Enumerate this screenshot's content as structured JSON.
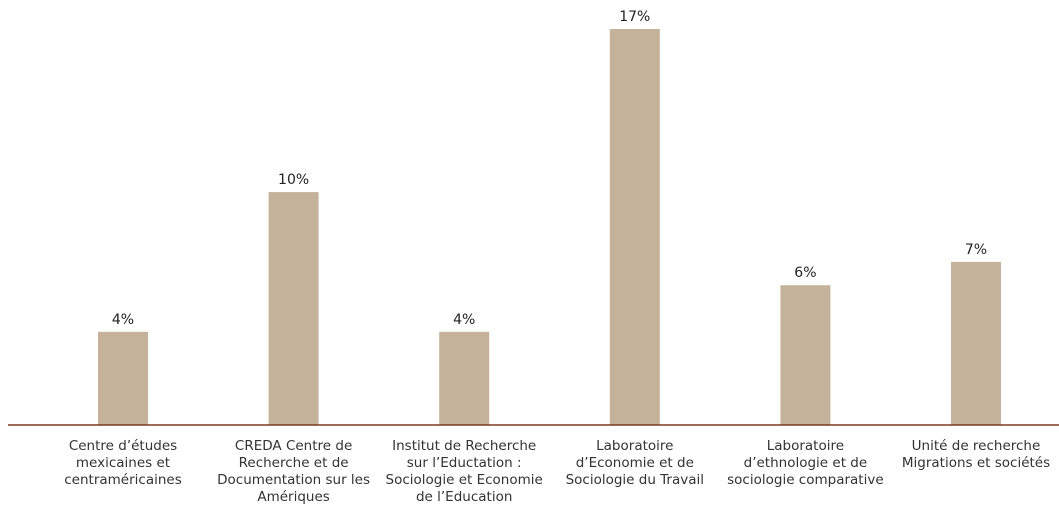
{
  "chart_data": {
    "type": "bar",
    "categories": [
      "Centre d’études mexicaines et centraméricaines",
      "CREDA Centre de Recherche et de Documentation sur les Amériques",
      "Institut de Recherche sur l’Eductation : Sociologie et Economie de l’Education",
      "Laboratoire d’Economie et de Sociologie du Travail",
      "Laboratoire d’ethnologie et de sociologie comparative",
      "Unité de recherche Migrations et sociétés"
    ],
    "values": [
      4,
      10,
      4,
      17,
      6,
      7
    ],
    "value_labels": [
      "4%",
      "10%",
      "4%",
      "17%",
      "6%",
      "7%"
    ],
    "color": "#c4b29a",
    "axis_color": "#7a3b1e"
  }
}
